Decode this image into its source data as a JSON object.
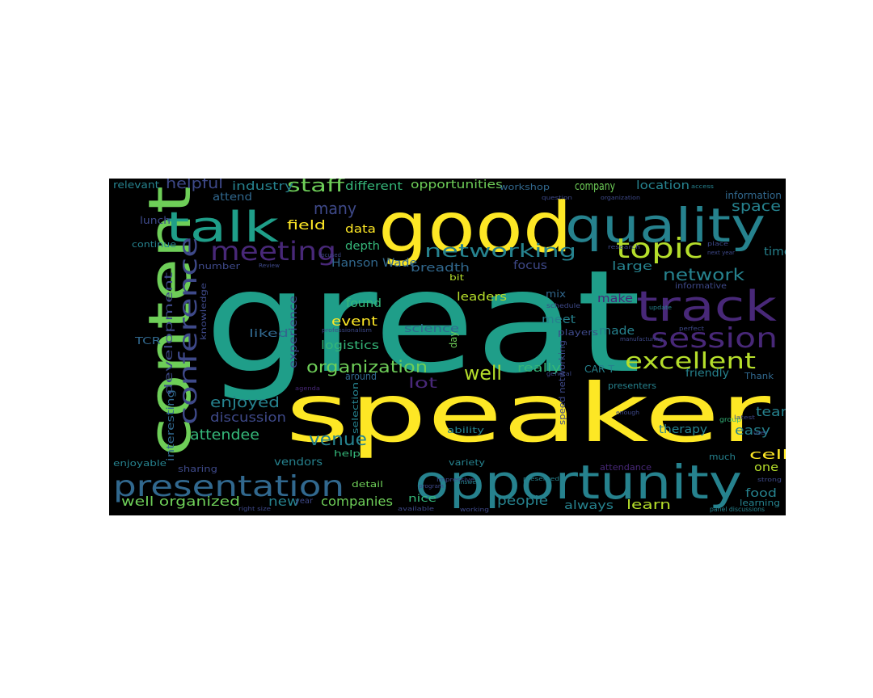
{
  "palette": {
    "background": "#000000",
    "page": "#ffffff",
    "viridis": [
      "#440154",
      "#482878",
      "#3e4989",
      "#31688e",
      "#26828e",
      "#1f9e89",
      "#35b779",
      "#6ece58",
      "#b5de2b",
      "#fde725"
    ]
  },
  "words": [
    {
      "text": "great",
      "c": "#1f9e89"
    },
    {
      "text": "speaker",
      "c": "#fde725"
    },
    {
      "text": "good",
      "c": "#fde725"
    },
    {
      "text": "content",
      "c": "#6ece58"
    },
    {
      "text": "quality",
      "c": "#26828e"
    },
    {
      "text": "talk",
      "c": "#1f9e89"
    },
    {
      "text": "opportunity",
      "c": "#26828e"
    },
    {
      "text": "track",
      "c": "#482878"
    },
    {
      "text": "presentation",
      "c": "#31688e"
    },
    {
      "text": "session",
      "c": "#482878"
    },
    {
      "text": "conference",
      "c": "#3e4989"
    },
    {
      "text": "meeting",
      "c": "#482878"
    },
    {
      "text": "topic",
      "c": "#b5de2b"
    },
    {
      "text": "excellent",
      "c": "#b5de2b"
    },
    {
      "text": "networking",
      "c": "#26828e"
    },
    {
      "text": "organization",
      "c": "#6ece58"
    },
    {
      "text": "well",
      "c": "#b5de2b"
    },
    {
      "text": "network",
      "c": "#26828e"
    },
    {
      "text": "venue",
      "c": "#26828e"
    },
    {
      "text": "staff",
      "c": "#6ece58"
    },
    {
      "text": "many",
      "c": "#3e4989"
    },
    {
      "text": "enjoyed",
      "c": "#26828e"
    },
    {
      "text": "field",
      "c": "#fde725"
    },
    {
      "text": "attendee",
      "c": "#35b779"
    },
    {
      "text": "discussion",
      "c": "#3e4989"
    },
    {
      "text": "helpful",
      "c": "#3e4989"
    },
    {
      "text": "new",
      "c": "#26828e"
    },
    {
      "text": "event",
      "c": "#fde725"
    },
    {
      "text": "well organized",
      "c": "#6ece58"
    },
    {
      "text": "companies",
      "c": "#6ece58"
    },
    {
      "text": "people",
      "c": "#26828e"
    },
    {
      "text": "learn",
      "c": "#b5de2b"
    },
    {
      "text": "space",
      "c": "#26828e"
    },
    {
      "text": "team",
      "c": "#26828e"
    },
    {
      "text": "cell",
      "c": "#fde725"
    },
    {
      "text": "easy",
      "c": "#26828e"
    },
    {
      "text": "lot",
      "c": "#482878"
    },
    {
      "text": "logistics",
      "c": "#35b779"
    },
    {
      "text": "development",
      "c": "#3e4989"
    },
    {
      "text": "industry",
      "c": "#26828e"
    },
    {
      "text": "different",
      "c": "#35b779"
    },
    {
      "text": "opportunities",
      "c": "#6ece58"
    },
    {
      "text": "company",
      "c": "#6ece58"
    },
    {
      "text": "location",
      "c": "#26828e"
    },
    {
      "text": "Hanson Wade",
      "c": "#31688e"
    },
    {
      "text": "breadth",
      "c": "#31688e"
    },
    {
      "text": "focus",
      "c": "#3e4989"
    },
    {
      "text": "large",
      "c": "#26828e"
    },
    {
      "text": "time",
      "c": "#26828e"
    },
    {
      "text": "data",
      "c": "#fde725"
    },
    {
      "text": "depth",
      "c": "#35b779"
    },
    {
      "text": "found",
      "c": "#35b779"
    },
    {
      "text": "leaders",
      "c": "#b5de2b"
    },
    {
      "text": "meet",
      "c": "#26828e"
    },
    {
      "text": "made",
      "c": "#26828e"
    },
    {
      "text": "make",
      "c": "#482878"
    },
    {
      "text": "really",
      "c": "#35b779"
    },
    {
      "text": "liked",
      "c": "#31688e"
    },
    {
      "text": "science",
      "c": "#31688e"
    },
    {
      "text": "experience",
      "c": "#3e4989"
    },
    {
      "text": "therapy",
      "c": "#26828e"
    },
    {
      "text": "one",
      "c": "#b5de2b"
    },
    {
      "text": "food",
      "c": "#26828e"
    },
    {
      "text": "always",
      "c": "#26828e"
    },
    {
      "text": "vendors",
      "c": "#26828e"
    },
    {
      "text": "nice",
      "c": "#35b779"
    },
    {
      "text": "relevant",
      "c": "#26828e"
    },
    {
      "text": "attend",
      "c": "#31688e"
    },
    {
      "text": "workshop",
      "c": "#31688e"
    },
    {
      "text": "information",
      "c": "#31688e"
    },
    {
      "text": "lunch",
      "c": "#3e4989"
    },
    {
      "text": "continue",
      "c": "#26828e"
    },
    {
      "text": "number",
      "c": "#3e4989"
    },
    {
      "text": "knowledge",
      "c": "#3e4989"
    },
    {
      "text": "TCR",
      "c": "#31688e"
    },
    {
      "text": "interesting",
      "c": "#31688e"
    },
    {
      "text": "enjoyable",
      "c": "#26828e"
    },
    {
      "text": "sharing",
      "c": "#3e4989"
    },
    {
      "text": "selection",
      "c": "#26828e"
    },
    {
      "text": "ability",
      "c": "#26828e"
    },
    {
      "text": "help",
      "c": "#35b779"
    },
    {
      "text": "variety",
      "c": "#26828e"
    },
    {
      "text": "detail",
      "c": "#6ece58"
    },
    {
      "text": "year",
      "c": "#3e4989"
    },
    {
      "text": "attendance",
      "c": "#482878"
    },
    {
      "text": "much",
      "c": "#26828e"
    },
    {
      "text": "learning",
      "c": "#26828e"
    },
    {
      "text": "friendly",
      "c": "#26828e"
    },
    {
      "text": "presenters",
      "c": "#26828e"
    },
    {
      "text": "players",
      "c": "#3e4989"
    },
    {
      "text": "day",
      "c": "#6ece58"
    },
    {
      "text": "mix",
      "c": "#31688e"
    },
    {
      "text": "informative",
      "c": "#3e4989"
    },
    {
      "text": "around",
      "c": "#31688e"
    },
    {
      "text": "CAR T",
      "c": "#26828e"
    },
    {
      "text": "Thank",
      "c": "#31688e"
    },
    {
      "text": "bit",
      "c": "#b5de2b"
    },
    {
      "text": "speed networking",
      "c": "#3e4989"
    },
    {
      "text": "schedule",
      "c": "#3e4989"
    },
    {
      "text": "group",
      "c": "#35b779"
    },
    {
      "text": "panel discussions",
      "c": "#26828e"
    },
    {
      "text": "right size",
      "c": "#3e4989"
    },
    {
      "text": "available",
      "c": "#3e4989"
    },
    {
      "text": "working",
      "c": "#3e4989"
    },
    {
      "text": "presented",
      "c": "#26828e"
    },
    {
      "text": "Impressive",
      "c": "#3e4989"
    },
    {
      "text": "answer",
      "c": "#26828e"
    },
    {
      "text": "strong",
      "c": "#3e4989"
    },
    {
      "text": "enough",
      "c": "#3e4989"
    },
    {
      "text": "question",
      "c": "#3e4989"
    },
    {
      "text": "organization",
      "c": "#3e4989"
    },
    {
      "text": "professionalism",
      "c": "#3e4989"
    },
    {
      "text": "manufacturing",
      "c": "#3e4989"
    },
    {
      "text": "perfect",
      "c": "#3e4989"
    },
    {
      "text": "update",
      "c": "#26828e"
    },
    {
      "text": "program",
      "c": "#3e4989"
    },
    {
      "text": "next year",
      "c": "#3e4989"
    },
    {
      "text": "focused",
      "c": "#3e4989"
    },
    {
      "text": "research",
      "c": "#3e4989"
    },
    {
      "text": "agenda",
      "c": "#482878"
    },
    {
      "text": "general",
      "c": "#3e4989"
    },
    {
      "text": "access",
      "c": "#26828e"
    },
    {
      "text": "place",
      "c": "#3e4989"
    },
    {
      "text": "latest",
      "c": "#3e4989"
    },
    {
      "text": "user",
      "c": "#3e4989"
    },
    {
      "text": "Review",
      "c": "#3e4989"
    }
  ]
}
